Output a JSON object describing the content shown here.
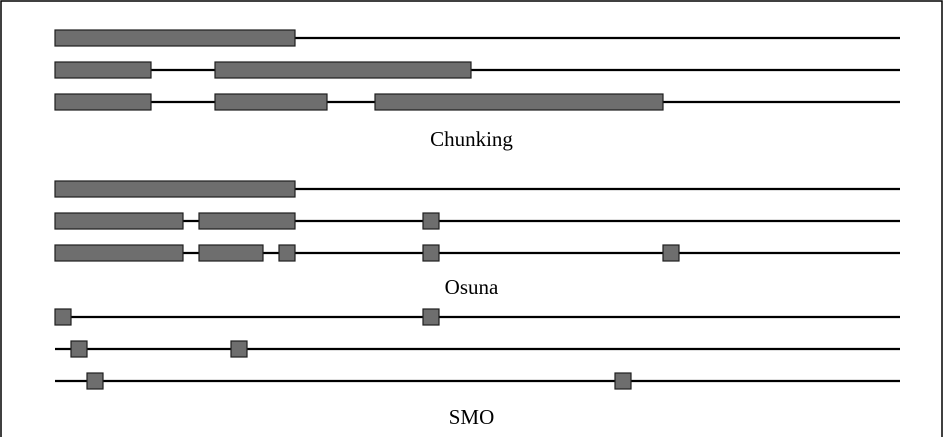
{
  "colors": {
    "block_fill": "#6e6e6e",
    "block_stroke": "#1e1e1e",
    "line": "#000000",
    "frame": "#000000"
  },
  "axis": {
    "min": 0,
    "max": 845
  },
  "groups": [
    {
      "caption": "Chunking",
      "rows": [
        {
          "segments": [
            [
              0,
              240
            ]
          ]
        },
        {
          "segments": [
            [
              0,
              96
            ],
            [
              160,
              416
            ]
          ]
        },
        {
          "segments": [
            [
              0,
              96
            ],
            [
              160,
              272
            ],
            [
              320,
              608
            ]
          ]
        }
      ]
    },
    {
      "caption": "Osuna",
      "rows": [
        {
          "segments": [
            [
              0,
              240
            ]
          ]
        },
        {
          "segments": [
            [
              0,
              128
            ],
            [
              144,
              240
            ],
            [
              368,
              384
            ]
          ]
        },
        {
          "segments": [
            [
              0,
              128
            ],
            [
              144,
              208
            ],
            [
              224,
              240
            ],
            [
              368,
              384
            ],
            [
              608,
              624
            ]
          ]
        }
      ]
    },
    {
      "caption": "SMO",
      "rows": [
        {
          "segments": [
            [
              0,
              16
            ],
            [
              368,
              384
            ]
          ]
        },
        {
          "segments": [
            [
              16,
              32
            ],
            [
              176,
              192
            ]
          ]
        },
        {
          "segments": [
            [
              32,
              48
            ],
            [
              560,
              576
            ]
          ]
        }
      ]
    }
  ]
}
